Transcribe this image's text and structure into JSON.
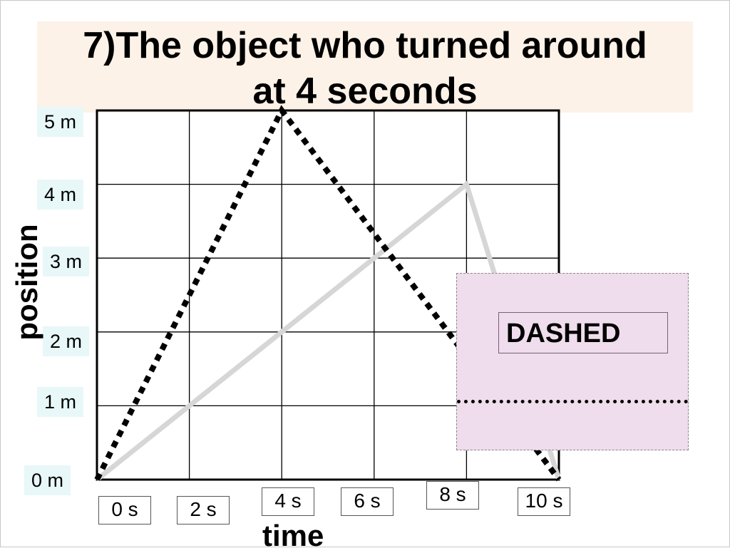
{
  "title_line1": "7)The object who turned around",
  "title_line2": "at 4 seconds",
  "legend": {
    "label": "DASHED"
  },
  "colors": {
    "dashed_series": "#000000",
    "solid_series": "#d6d6d6",
    "title_bg": "#fdf2e8",
    "tick_bg": "#e8f7f7",
    "legend_bg": "#efdcec"
  },
  "chart_data": {
    "type": "line",
    "xlabel": "time",
    "ylabel": "position",
    "xlim": [
      0,
      10
    ],
    "ylim": [
      0,
      5
    ],
    "grid": true,
    "x_ticks": [
      "0 s",
      "2 s",
      "4 s",
      "6 s",
      "8 s",
      "10 s"
    ],
    "y_ticks": [
      "0 m",
      "1 m",
      "2 m",
      "3 m",
      "4 m",
      "5 m"
    ],
    "series": [
      {
        "style": "dashed",
        "color": "#000000",
        "x": [
          0,
          4,
          10
        ],
        "y": [
          0,
          5,
          0
        ]
      },
      {
        "style": "solid",
        "color": "#d6d6d6",
        "x": [
          0,
          8,
          10
        ],
        "y": [
          0,
          4,
          0
        ]
      }
    ]
  }
}
